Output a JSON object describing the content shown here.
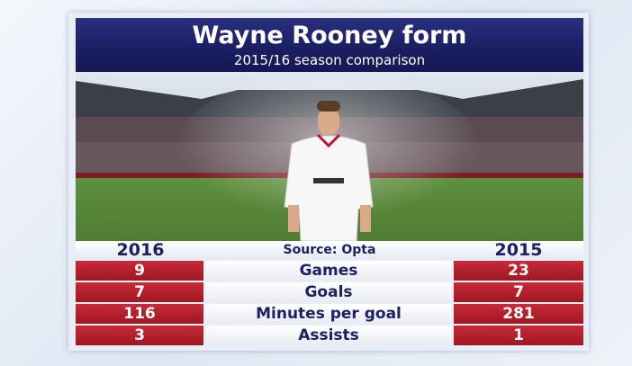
{
  "header": {
    "title": "Wayne Rooney form",
    "subtitle": "2015/16 season comparison"
  },
  "table": {
    "columns": [
      "2016",
      "Source: Opta",
      "2015"
    ],
    "rows": [
      [
        9,
        "Games",
        23
      ],
      [
        7,
        "Goals",
        7
      ],
      [
        116,
        "Minutes per goal",
        281
      ],
      [
        3,
        "Assists",
        1
      ]
    ]
  }
}
